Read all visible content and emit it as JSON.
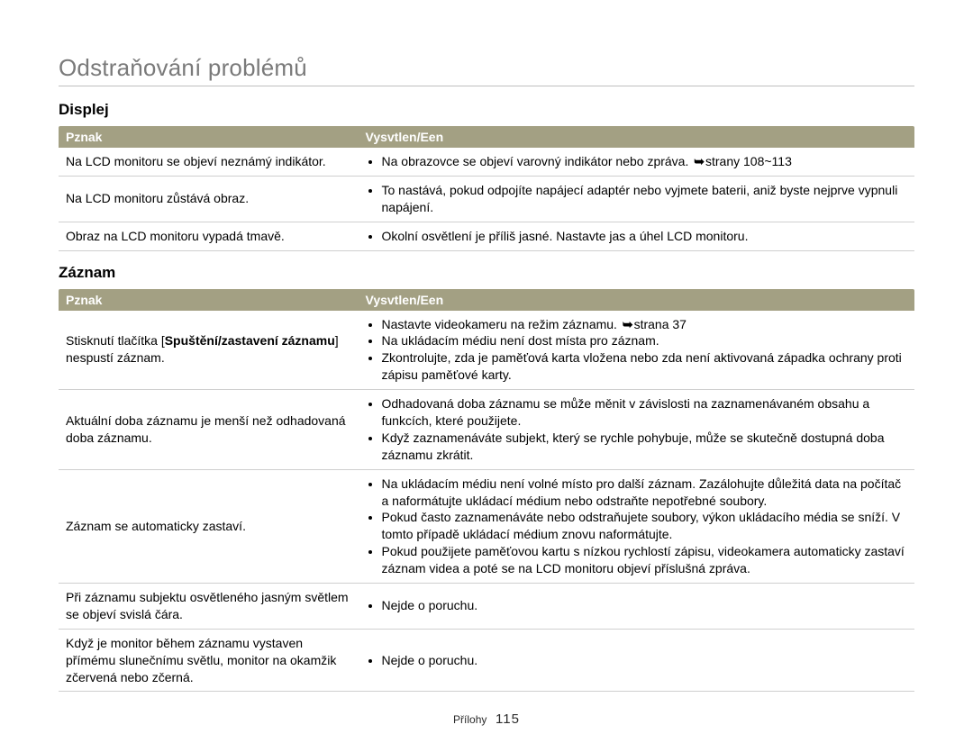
{
  "page": {
    "title": "Odstraňování problémů",
    "footer_text": "Přílohy",
    "page_number": "115",
    "arrow_glyph": "➥"
  },
  "tables": {
    "col1_width": "35%",
    "col2_width": "65%",
    "header_bg": "#a3a083",
    "header_fg": "#ffffff",
    "border_color": "#cfcfcf"
  },
  "sections": [
    {
      "title": "Displej",
      "headers": {
        "symptom": "Pznak",
        "explanation": "Vysvtlen/Een"
      },
      "rows": [
        {
          "symptom_plain": "Na LCD monitoru se objeví neznámý indikátor.",
          "items": [
            {
              "pre": "Na obrazovce se objeví varovný indikátor nebo zpráva. ",
              "arrow": true,
              "post": "strany 108~113"
            }
          ]
        },
        {
          "symptom_plain": "Na LCD monitoru zůstává obraz.",
          "items": [
            {
              "pre": "To nastává, pokud odpojíte napájecí adaptér nebo vyjmete baterii, aniž byste nejprve vypnuli napájení."
            }
          ]
        },
        {
          "symptom_plain": "Obraz na LCD monitoru vypadá tmavě.",
          "items": [
            {
              "pre": "Okolní osvětlení je příliš jasné. Nastavte jas a úhel LCD monitoru."
            }
          ]
        }
      ]
    },
    {
      "title": "Záznam",
      "headers": {
        "symptom": "Pznak",
        "explanation": "Vysvtlen/Een"
      },
      "rows": [
        {
          "symptom_rich": [
            {
              "t": "Stisknutí tlačítka ["
            },
            {
              "t": "Spuštění/zastavení záznamu",
              "bold": true
            },
            {
              "t": "] nespustí záznam."
            }
          ],
          "items": [
            {
              "pre": "Nastavte videokameru na režim záznamu. ",
              "arrow": true,
              "post": "strana 37"
            },
            {
              "pre": "Na ukládacím médiu není dost místa pro záznam."
            },
            {
              "pre": "Zkontrolujte, zda je paměťová karta vložena nebo zda není aktivovaná západka ochrany proti zápisu paměťové karty."
            }
          ]
        },
        {
          "symptom_plain": "Aktuální doba záznamu je menší než odhadovaná doba záznamu.",
          "items": [
            {
              "pre": "Odhadovaná doba záznamu se může měnit v závislosti na zaznamenávaném obsahu a funkcích, které použijete."
            },
            {
              "pre": "Když zaznamenáváte subjekt, který se rychle pohybuje, může se skutečně dostupná doba záznamu zkrátit."
            }
          ]
        },
        {
          "symptom_plain": "Záznam se automaticky zastaví.",
          "items": [
            {
              "pre": "Na ukládacím médiu není volné místo pro další záznam. Zazálohujte důležitá data na počítač a naformátujte ukládací médium nebo odstraňte nepotřebné soubory."
            },
            {
              "pre": "Pokud často zaznamenáváte nebo odstraňujete soubory, výkon ukládacího média se sníží. V tomto případě ukládací médium znovu naformátujte."
            },
            {
              "pre": "Pokud použijete paměťovou kartu s nízkou rychlostí zápisu, videokamera automaticky zastaví záznam videa a poté se na LCD monitoru objeví příslušná zpráva."
            }
          ]
        },
        {
          "symptom_plain": "Při záznamu subjektu osvětleného jasným světlem se objeví svislá čára.",
          "items": [
            {
              "pre": "Nejde o poruchu."
            }
          ]
        },
        {
          "symptom_plain": "Když je monitor během záznamu vystaven přímému slunečnímu světlu, monitor na okamžik zčervená nebo zčerná.",
          "items": [
            {
              "pre": "Nejde o poruchu."
            }
          ]
        }
      ]
    }
  ]
}
